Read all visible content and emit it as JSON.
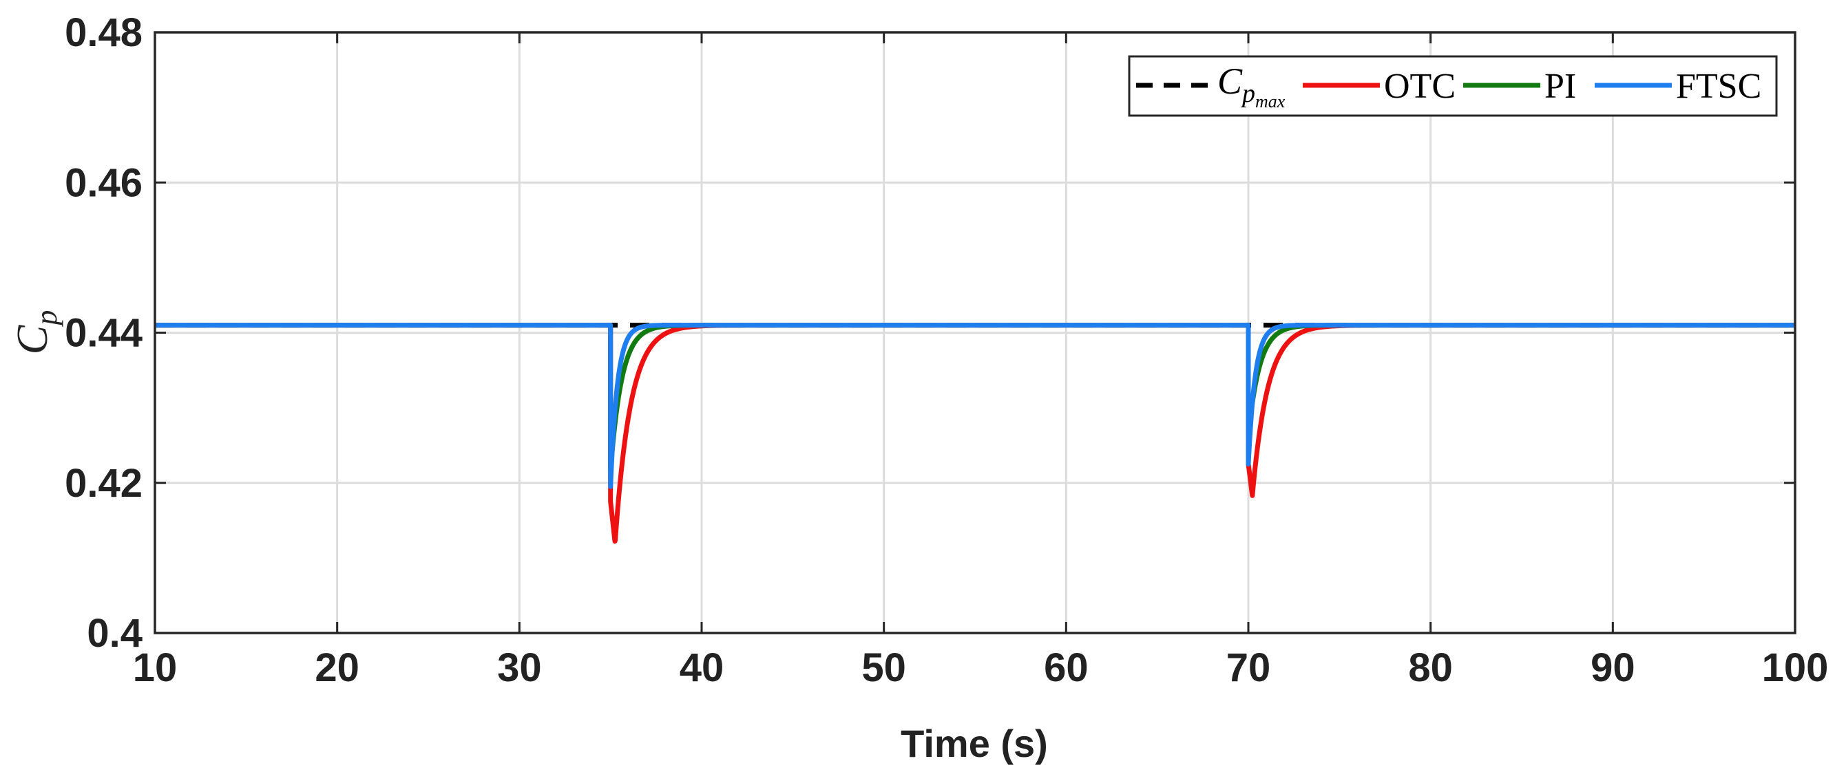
{
  "chart_data": {
    "type": "line",
    "title": "",
    "xlabel": "Time (s)",
    "ylabel": "C",
    "ylabel_sub": "p",
    "xlim": [
      10,
      100
    ],
    "ylim": [
      0.4,
      0.48
    ],
    "xticks": [
      10,
      20,
      30,
      40,
      50,
      60,
      70,
      80,
      90,
      100
    ],
    "xtick_labels": [
      "10",
      "20",
      "30",
      "40",
      "50",
      "60",
      "70",
      "80",
      "90",
      "100"
    ],
    "yticks": [
      0.4,
      0.42,
      0.44,
      0.46,
      0.48
    ],
    "ytick_labels": [
      "0.4",
      "0.42",
      "0.44",
      "0.46",
      "0.48"
    ],
    "grid": true,
    "legend_position": "top-right",
    "legend_orientation": "horizontal",
    "steady_value": 0.441,
    "disturbance_times": [
      35,
      70
    ],
    "series": [
      {
        "name": "Cpmax",
        "label_main": "C",
        "label_sub": "p",
        "label_subsub": "max",
        "color": "#000000",
        "style": "dashed",
        "value": 0.441,
        "dips": []
      },
      {
        "name": "OTC",
        "label_main": "OTC",
        "color": "#ee1111",
        "style": "solid",
        "dips": [
          {
            "t0": 35,
            "start": 0.4175,
            "min": 0.412,
            "tmin": 35.25,
            "tau": 0.85
          },
          {
            "t0": 70,
            "start": 0.4225,
            "min": 0.4183,
            "tmin": 70.22,
            "tau": 0.85
          }
        ]
      },
      {
        "name": "PI",
        "label_main": "PI",
        "color": "#117a11",
        "style": "solid",
        "dips": [
          {
            "t0": 35,
            "start": 0.4215,
            "min": 0.4215,
            "tmin": 35.0,
            "tau": 0.62
          },
          {
            "t0": 70,
            "start": 0.4262,
            "min": 0.4262,
            "tmin": 70.0,
            "tau": 0.62
          }
        ]
      },
      {
        "name": "FTSC",
        "label_main": "FTSC",
        "color": "#1e7ef0",
        "style": "solid",
        "dips": [
          {
            "t0": 35,
            "start": 0.4195,
            "min": 0.4195,
            "tmin": 35.0,
            "tau": 0.38
          },
          {
            "t0": 70,
            "start": 0.4225,
            "min": 0.4225,
            "tmin": 70.0,
            "tau": 0.38
          }
        ]
      }
    ]
  }
}
